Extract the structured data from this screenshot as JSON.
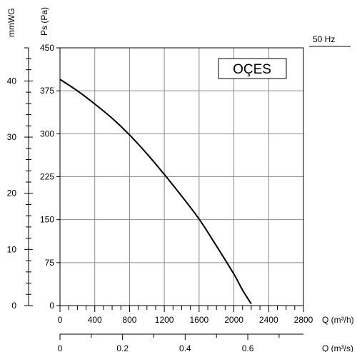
{
  "chart_data": {
    "type": "line",
    "frequency_label": "50 Hz",
    "brand_label": "OÇES",
    "y_primary": {
      "label": "Ps (Pa)",
      "range": [
        0,
        450
      ],
      "ticks": [
        0,
        75,
        150,
        225,
        300,
        375,
        450
      ],
      "tick_labels": [
        "0",
        "75",
        "150",
        "225",
        "300",
        "375",
        "450"
      ]
    },
    "y_secondary": {
      "label": "mmWG",
      "range": [
        0,
        45.9
      ],
      "ticks": [
        0,
        10,
        20,
        30,
        40
      ],
      "tick_labels": [
        "0",
        "10",
        "20",
        "30",
        "40"
      ]
    },
    "x_primary": {
      "label": "Q (m³/h)",
      "range": [
        0,
        2800
      ],
      "ticks": [
        0,
        400,
        800,
        1200,
        1600,
        2000,
        2400,
        2800
      ],
      "tick_labels": [
        "0",
        "400",
        "800",
        "1200",
        "1600",
        "2000",
        "2400",
        "2800"
      ]
    },
    "x_secondary": {
      "label": "Q (m³/s)",
      "range": [
        0,
        0.7778
      ],
      "ticks": [
        0,
        0.2,
        0.4,
        0.6
      ],
      "tick_labels": [
        "0",
        "0.2",
        "0.4",
        "0.6"
      ]
    },
    "grid": true,
    "series": [
      {
        "color": "#000000",
        "x": [
          0,
          200,
          400,
          600,
          800,
          1000,
          1200,
          1400,
          1600,
          1800,
          2000,
          2100,
          2200
        ],
        "y": [
          395,
          375,
          352,
          327,
          298,
          265,
          229,
          191,
          151,
          104,
          55,
          27,
          3
        ]
      }
    ]
  }
}
